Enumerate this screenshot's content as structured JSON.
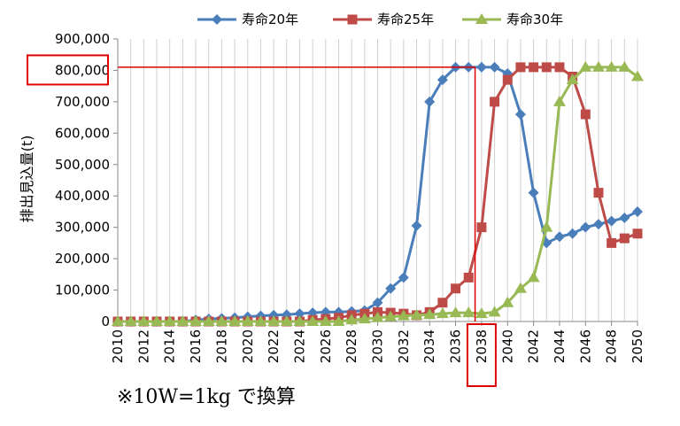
{
  "chart_data": {
    "type": "line",
    "title": "",
    "ylabel": "排出見込量(t)",
    "xlabel": "",
    "ylim": [
      0,
      900000
    ],
    "y_ticks": [
      0,
      100000,
      200000,
      300000,
      400000,
      500000,
      600000,
      700000,
      800000,
      900000
    ],
    "y_tick_labels": [
      "0",
      "100,000",
      "200,000",
      "300,000",
      "400,000",
      "500,000",
      "600,000",
      "700,000",
      "800,000",
      "900,000"
    ],
    "x_tick_labels": [
      "2010",
      "2012",
      "2014",
      "2016",
      "2018",
      "2020",
      "2022",
      "2024",
      "2026",
      "2028",
      "2030",
      "2032",
      "2034",
      "2036",
      "2038",
      "2040",
      "2042",
      "2044",
      "2046",
      "2048",
      "2050"
    ],
    "x": [
      2010,
      2011,
      2012,
      2013,
      2014,
      2015,
      2016,
      2017,
      2018,
      2019,
      2020,
      2021,
      2022,
      2023,
      2024,
      2025,
      2026,
      2027,
      2028,
      2029,
      2030,
      2031,
      2032,
      2033,
      2034,
      2035,
      2036,
      2037,
      2038,
      2039,
      2040,
      2041,
      2042,
      2043,
      2044,
      2045,
      2046,
      2047,
      2048,
      2049,
      2050
    ],
    "legend_position": "top",
    "grid": "vertical",
    "series": [
      {
        "name": "寿命20年",
        "color": "#4a7ebb",
        "marker": "diamond",
        "values": [
          0,
          0,
          0,
          0,
          0,
          0,
          5000,
          8000,
          10000,
          12000,
          15000,
          18000,
          20000,
          22000,
          25000,
          28000,
          30000,
          30000,
          32000,
          35000,
          60000,
          105000,
          140000,
          305000,
          700000,
          770000,
          810000,
          810000,
          810000,
          810000,
          790000,
          660000,
          410000,
          250000,
          270000,
          280000,
          300000,
          310000,
          320000,
          330000,
          350000
        ]
      },
      {
        "name": "寿命25年",
        "color": "#be4b48",
        "marker": "square",
        "values": [
          0,
          0,
          0,
          0,
          0,
          0,
          0,
          0,
          0,
          0,
          0,
          0,
          0,
          0,
          0,
          5000,
          8000,
          12000,
          20000,
          25000,
          30000,
          28000,
          25000,
          20000,
          30000,
          60000,
          105000,
          140000,
          300000,
          700000,
          770000,
          810000,
          810000,
          810000,
          810000,
          780000,
          660000,
          410000,
          250000,
          265000,
          280000
        ]
      },
      {
        "name": "寿命30年",
        "color": "#98b954",
        "marker": "triangle",
        "values": [
          0,
          0,
          0,
          0,
          0,
          0,
          0,
          0,
          0,
          0,
          0,
          0,
          0,
          0,
          0,
          0,
          0,
          0,
          5000,
          8000,
          12000,
          15000,
          18000,
          20000,
          22000,
          25000,
          28000,
          28000,
          25000,
          30000,
          60000,
          105000,
          140000,
          300000,
          700000,
          770000,
          810000,
          810000,
          810000,
          810000,
          780000
        ]
      }
    ],
    "annotations": {
      "hline_value": 810000,
      "vline_x": 2037.5,
      "highlight_y_label": "800,000",
      "highlight_x_label": "2038",
      "color": "#e00000"
    }
  },
  "note": "※10W=1kg で換算"
}
